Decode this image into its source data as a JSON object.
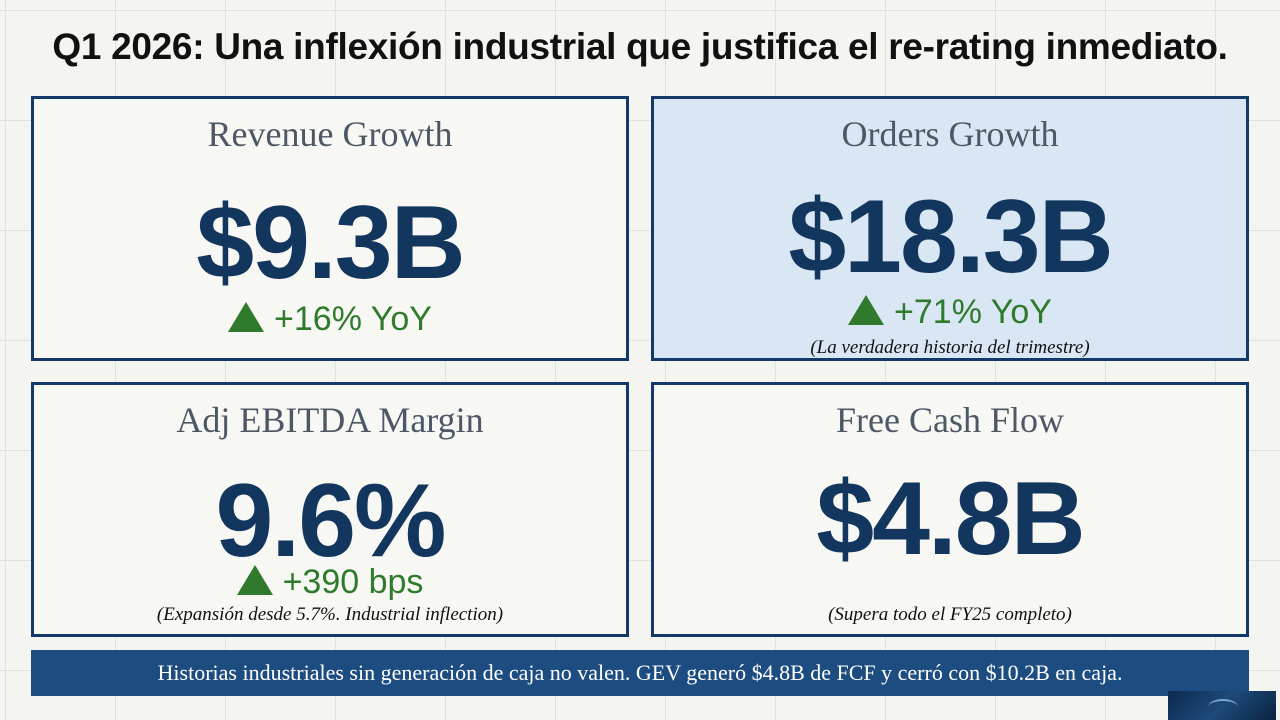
{
  "title": "Q1 2026: Una inflexión industrial que justifica el re-rating inmediato.",
  "cards": [
    {
      "label": "Revenue Growth",
      "value": "$9.3B",
      "change": "+16% YoY",
      "note": ""
    },
    {
      "label": "Orders Growth",
      "value": "$18.3B",
      "change": "+71% YoY",
      "note": "(La verdadera historia del trimestre)"
    },
    {
      "label": "Adj EBITDA Margin",
      "value": "9.6%",
      "change": "+390 bps",
      "note": "(Expansión desde 5.7%. Industrial inflection)"
    },
    {
      "label": "Free Cash Flow",
      "value": "$4.8B",
      "change": "",
      "note": "(Supera todo el FY25 completo)"
    }
  ],
  "footer": "Historias industriales sin generación de caja no valen. GEV generó $4.8B de FCF y cerró con $10.2B en caja.",
  "colors": {
    "accent_navy": "#13396b",
    "positive_green": "#2f7a2c",
    "highlight_blue": "#d9e6f3",
    "footer_bar": "#1d4c80"
  },
  "icons": {
    "change_indicator": "up-triangle-icon"
  }
}
